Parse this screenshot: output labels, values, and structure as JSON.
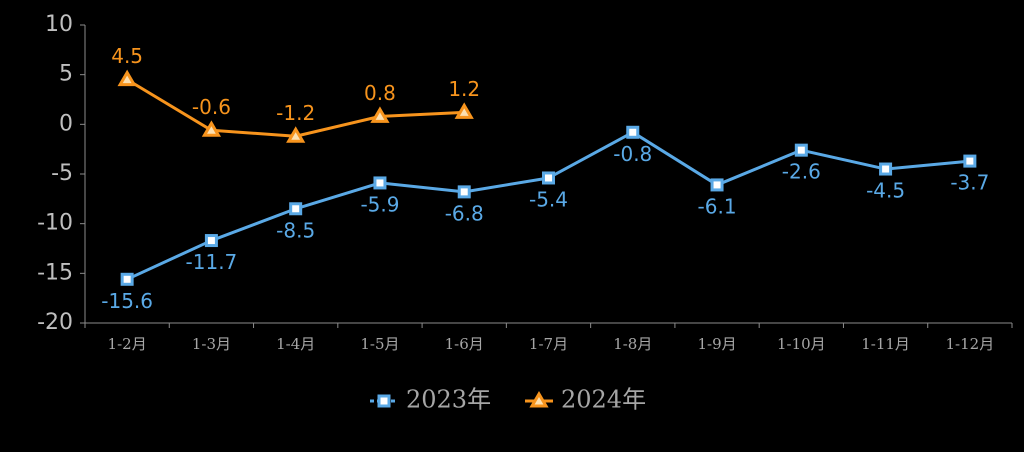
{
  "chart_data": {
    "type": "line",
    "categories": [
      "1-2月",
      "1-3月",
      "1-4月",
      "1-5月",
      "1-6月",
      "1-7月",
      "1-8月",
      "1-9月",
      "1-10月",
      "1-11月",
      "1-12月"
    ],
    "series": [
      {
        "name": "2023年",
        "color": "#5aa9e6",
        "values": [
          -15.6,
          -11.7,
          -8.5,
          -5.9,
          -6.8,
          -5.4,
          -0.8,
          -6.1,
          -2.6,
          -4.5,
          -3.7
        ]
      },
      {
        "name": "2024年",
        "color": "#f7941d",
        "values": [
          4.5,
          -0.6,
          -1.2,
          0.8,
          1.2,
          null,
          null,
          null,
          null,
          null,
          null
        ]
      }
    ],
    "ylim": [
      -20,
      10
    ],
    "yticks": [
      -20,
      -15,
      -10,
      -5,
      0,
      5,
      10
    ],
    "legend": "bottom"
  }
}
